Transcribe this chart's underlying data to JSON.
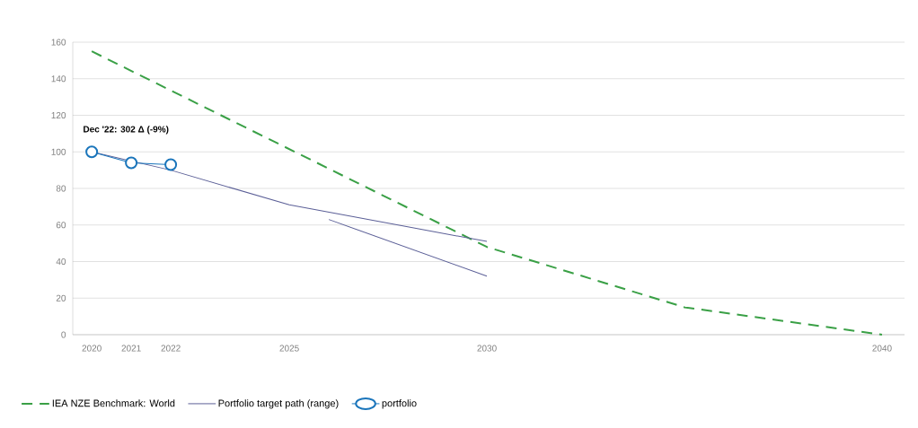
{
  "chart_data": {
    "type": "line",
    "x": [
      2020,
      2030,
      2035,
      2040
    ],
    "series": [
      {
        "name": "IEA NZE Benchmark: World",
        "color": "#3aa046",
        "values": [
          155,
          48,
          15,
          0
        ],
        "line_style": "dashed",
        "marker": "none"
      },
      {
        "name": "Portfolio target path (range)",
        "color": "#5b5f97",
        "x": [
          2020,
          2022,
          2025,
          2030
        ],
        "values": [
          100,
          90,
          71,
          51
        ],
        "line_style": "solid",
        "marker": "none"
      },
      {
        "color": "#5b5f97",
        "x": [
          2026,
          2030
        ],
        "values": [
          63,
          32
        ],
        "line_style": "solid",
        "marker": "none"
      },
      {
        "name": "portfolio",
        "color": "#1a75bb",
        "x": [
          2020,
          2021,
          2022
        ],
        "values": [
          100,
          94,
          93
        ],
        "line_style": "solid",
        "marker": "circle"
      }
    ],
    "annotations": [
      "Dec '22: 302 Δ (-9%)"
    ],
    "xlim": [
      2019.52,
      2040.57
    ],
    "xticks": [
      2020,
      2021,
      2022,
      2025,
      2030,
      2040
    ],
    "ylim": [
      0,
      160
    ],
    "yticks": [
      0,
      20,
      40,
      60,
      80,
      100,
      120,
      140,
      160
    ],
    "grid": "y",
    "legend": "bottom"
  }
}
